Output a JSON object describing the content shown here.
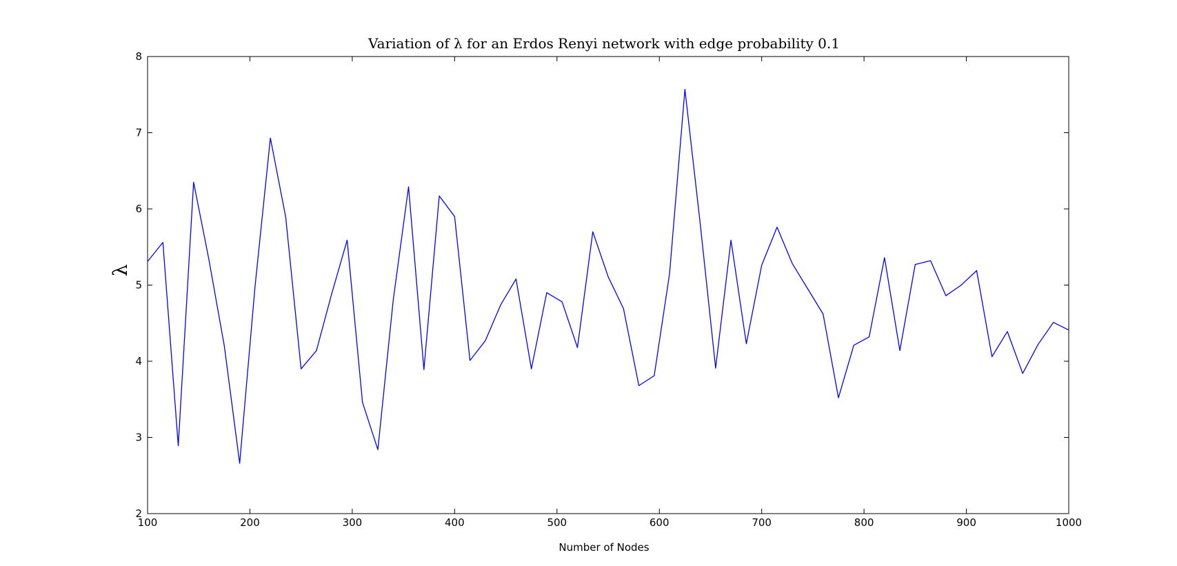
{
  "chart_data": {
    "type": "line",
    "title": "Variation of λ for an Erdos Renyi network with edge probability 0.1",
    "xlabel": "Number of Nodes",
    "ylabel": "λ",
    "xlim": [
      100,
      1000
    ],
    "ylim": [
      2,
      8
    ],
    "xticks": [
      "100",
      "200",
      "300",
      "400",
      "500",
      "600",
      "700",
      "800",
      "900",
      "1000"
    ],
    "yticks": [
      "2",
      "3",
      "4",
      "5",
      "6",
      "7",
      "8"
    ],
    "grid": false,
    "line_color": "#0000ff",
    "series": [
      {
        "x": [
          100,
          115,
          130,
          145,
          160,
          175,
          190,
          205,
          220,
          235,
          250,
          265,
          280,
          295,
          310,
          325,
          340,
          355,
          370,
          385,
          400,
          415,
          430,
          445,
          460,
          475,
          490,
          505,
          520,
          535,
          550,
          565,
          580,
          595,
          610,
          625,
          640,
          655,
          670,
          685,
          700,
          715,
          730,
          745,
          760,
          775,
          790,
          805,
          820,
          835,
          850,
          865,
          880,
          895,
          910,
          925,
          940,
          955,
          970,
          985,
          1000
        ],
        "values": [
          5.31,
          5.56,
          2.89,
          6.35,
          5.33,
          4.2,
          2.66,
          4.98,
          6.93,
          5.89,
          3.9,
          4.14,
          4.89,
          5.59,
          3.46,
          2.84,
          4.8,
          6.29,
          3.89,
          6.17,
          5.9,
          4.01,
          4.27,
          4.74,
          5.08,
          3.9,
          4.9,
          4.78,
          4.18,
          5.7,
          5.11,
          4.69,
          3.68,
          3.81,
          5.15,
          7.57,
          5.8,
          3.91,
          5.59,
          4.23,
          5.26,
          5.76,
          5.28,
          4.95,
          4.62,
          3.52,
          4.21,
          4.32,
          5.36,
          4.14,
          5.27,
          5.32,
          4.86,
          5.0,
          5.19,
          4.06,
          4.39,
          3.84,
          4.22,
          4.51,
          4.41
        ]
      }
    ]
  }
}
